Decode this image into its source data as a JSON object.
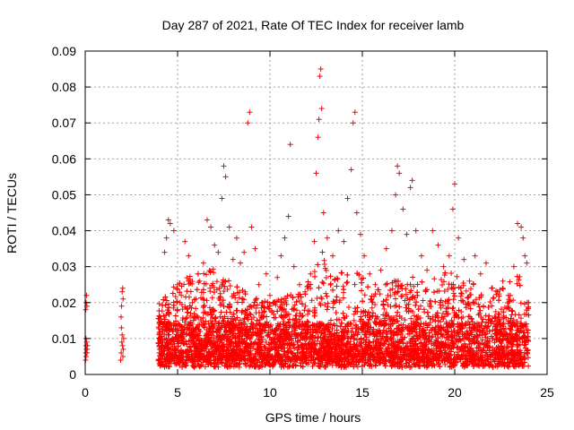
{
  "chart_data": {
    "type": "scatter",
    "title": "Day 287 of 2021, Rate Of TEC Index for receiver lamb",
    "xlabel": "GPS time / hours",
    "ylabel": "ROTI / TECUs",
    "xlim": [
      0,
      25
    ],
    "ylim": [
      0,
      0.09
    ],
    "xticks": [
      0,
      5,
      10,
      15,
      20,
      25
    ],
    "yticks": [
      0,
      0.01,
      0.02,
      0.03,
      0.04,
      0.05,
      0.06,
      0.07,
      0.08,
      0.09
    ],
    "xtick_labels": [
      "0",
      "5",
      "10",
      "15",
      "20",
      "25"
    ],
    "ytick_labels": [
      "0",
      "0.01",
      "0.02",
      "0.03",
      "0.04",
      "0.05",
      "0.06",
      "0.07",
      "0.08",
      "0.09"
    ],
    "grid": true,
    "marker": "+",
    "color": "#ff0000",
    "series": [
      {
        "values": [
          [
            0.02,
            0.004
          ],
          [
            0.03,
            0.006
          ],
          [
            0.04,
            0.008
          ],
          [
            0.05,
            0.005
          ],
          [
            0.06,
            0.007
          ],
          [
            0.08,
            0.009
          ],
          [
            0.1,
            0.006
          ],
          [
            0.12,
            0.008
          ],
          [
            0.03,
            0.018
          ],
          [
            0.05,
            0.02
          ],
          [
            0.07,
            0.022
          ],
          [
            0.09,
            0.019
          ],
          [
            0.04,
            0.01
          ],
          [
            0.11,
            0.007
          ],
          [
            1.92,
            0.004
          ],
          [
            1.95,
            0.006
          ],
          [
            1.98,
            0.009
          ],
          [
            2.0,
            0.011
          ],
          [
            2.02,
            0.008
          ],
          [
            2.04,
            0.005
          ],
          [
            2.06,
            0.007
          ],
          [
            2.08,
            0.01
          ],
          [
            1.94,
            0.016
          ],
          [
            1.97,
            0.019
          ],
          [
            2.0,
            0.023
          ],
          [
            2.03,
            0.024
          ],
          [
            2.05,
            0.021
          ],
          [
            1.96,
            0.013
          ],
          [
            4.0,
            0.006
          ],
          [
            4.1,
            0.009
          ],
          [
            4.2,
            0.012
          ],
          [
            4.3,
            0.034
          ],
          [
            4.4,
            0.038
          ],
          [
            4.5,
            0.043
          ],
          [
            4.6,
            0.042
          ],
          [
            4.8,
            0.04
          ],
          [
            5.0,
            0.025
          ],
          [
            5.2,
            0.022
          ],
          [
            5.4,
            0.037
          ],
          [
            5.6,
            0.033
          ],
          [
            5.8,
            0.02
          ],
          [
            6.0,
            0.021
          ],
          [
            6.2,
            0.026
          ],
          [
            6.4,
            0.031
          ],
          [
            6.6,
            0.043
          ],
          [
            6.8,
            0.041
          ],
          [
            7.0,
            0.036
          ],
          [
            7.2,
            0.034
          ],
          [
            7.4,
            0.049
          ],
          [
            7.5,
            0.058
          ],
          [
            7.6,
            0.055
          ],
          [
            7.8,
            0.041
          ],
          [
            8.0,
            0.032
          ],
          [
            8.2,
            0.038
          ],
          [
            8.4,
            0.031
          ],
          [
            8.6,
            0.034
          ],
          [
            8.8,
            0.07
          ],
          [
            8.9,
            0.073
          ],
          [
            9.0,
            0.041
          ],
          [
            9.2,
            0.035
          ],
          [
            9.4,
            0.025
          ],
          [
            9.6,
            0.02
          ],
          [
            9.8,
            0.028
          ],
          [
            10.0,
            0.022
          ],
          [
            10.2,
            0.02
          ],
          [
            10.4,
            0.027
          ],
          [
            10.6,
            0.033
          ],
          [
            10.8,
            0.038
          ],
          [
            11.0,
            0.044
          ],
          [
            11.1,
            0.064
          ],
          [
            11.3,
            0.03
          ],
          [
            11.6,
            0.025
          ],
          [
            11.9,
            0.023
          ],
          [
            12.2,
            0.028
          ],
          [
            12.4,
            0.037
          ],
          [
            12.5,
            0.056
          ],
          [
            12.6,
            0.066
          ],
          [
            12.65,
            0.071
          ],
          [
            12.7,
            0.083
          ],
          [
            12.75,
            0.085
          ],
          [
            12.8,
            0.074
          ],
          [
            12.9,
            0.045
          ],
          [
            13.1,
            0.038
          ],
          [
            13.4,
            0.033
          ],
          [
            13.7,
            0.04
          ],
          [
            14.0,
            0.037
          ],
          [
            14.2,
            0.049
          ],
          [
            14.4,
            0.057
          ],
          [
            14.5,
            0.07
          ],
          [
            14.6,
            0.073
          ],
          [
            14.7,
            0.045
          ],
          [
            14.9,
            0.039
          ],
          [
            15.1,
            0.033
          ],
          [
            15.4,
            0.028
          ],
          [
            15.7,
            0.025
          ],
          [
            16.0,
            0.029
          ],
          [
            16.3,
            0.035
          ],
          [
            16.6,
            0.04
          ],
          [
            16.8,
            0.05
          ],
          [
            16.9,
            0.058
          ],
          [
            17.0,
            0.056
          ],
          [
            17.2,
            0.046
          ],
          [
            17.4,
            0.039
          ],
          [
            17.6,
            0.052
          ],
          [
            17.7,
            0.054
          ],
          [
            17.9,
            0.04
          ],
          [
            18.2,
            0.033
          ],
          [
            18.5,
            0.029
          ],
          [
            18.8,
            0.04
          ],
          [
            19.1,
            0.036
          ],
          [
            19.4,
            0.03
          ],
          [
            19.7,
            0.033
          ],
          [
            19.9,
            0.046
          ],
          [
            20.0,
            0.053
          ],
          [
            20.2,
            0.038
          ],
          [
            20.5,
            0.032
          ],
          [
            20.8,
            0.026
          ],
          [
            21.1,
            0.033
          ],
          [
            21.4,
            0.028
          ],
          [
            21.7,
            0.031
          ],
          [
            22.0,
            0.024
          ],
          [
            22.3,
            0.023
          ],
          [
            22.6,
            0.026
          ],
          [
            22.9,
            0.022
          ],
          [
            23.2,
            0.03
          ],
          [
            23.4,
            0.042
          ],
          [
            23.6,
            0.041
          ],
          [
            23.7,
            0.038
          ],
          [
            23.8,
            0.033
          ],
          [
            23.9,
            0.031
          ],
          [
            24.0,
            0.02
          ]
        ]
      }
    ],
    "dense_cloud": {
      "x_range": [
        3.95,
        24.0
      ],
      "y_min": 0.002,
      "y_typical": [
        0.004,
        0.014
      ],
      "y_upper_envelope": [
        [
          4.0,
          0.02
        ],
        [
          5.0,
          0.026
        ],
        [
          6.0,
          0.028
        ],
        [
          7.0,
          0.03
        ],
        [
          8.0,
          0.026
        ],
        [
          9.0,
          0.022
        ],
        [
          10.0,
          0.02
        ],
        [
          11.0,
          0.022
        ],
        [
          12.0,
          0.025
        ],
        [
          12.8,
          0.035
        ],
        [
          13.5,
          0.028
        ],
        [
          14.5,
          0.032
        ],
        [
          15.5,
          0.024
        ],
        [
          16.5,
          0.026
        ],
        [
          17.5,
          0.028
        ],
        [
          18.5,
          0.025
        ],
        [
          19.5,
          0.03
        ],
        [
          20.5,
          0.026
        ],
        [
          21.5,
          0.025
        ],
        [
          22.5,
          0.024
        ],
        [
          23.5,
          0.028
        ],
        [
          24.0,
          0.02
        ]
      ]
    }
  }
}
